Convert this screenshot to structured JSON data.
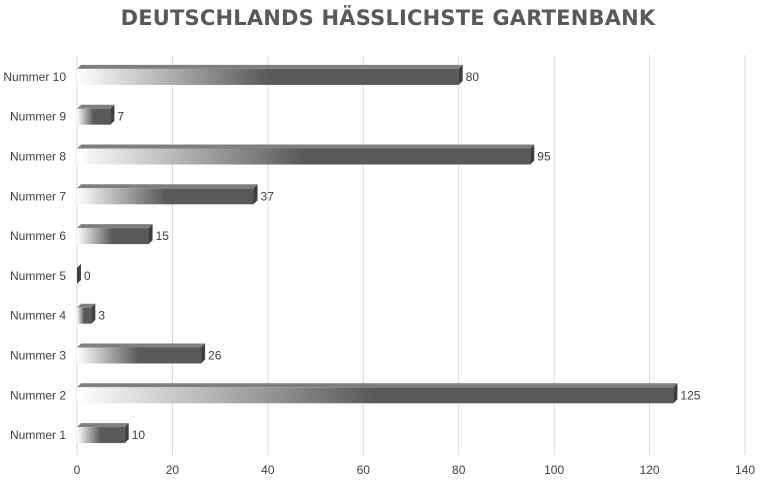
{
  "chart_data": {
    "type": "bar",
    "orientation": "horizontal",
    "title": "DEUTSCHLANDS HÄSSLICHSTE GARTENBANK",
    "categories": [
      "Nummer 1",
      "Nummer 2",
      "Nummer 3",
      "Nummer 4",
      "Nummer 5",
      "Nummer 6",
      "Nummer 7",
      "Nummer 8",
      "Nummer 9",
      "Nummer 10"
    ],
    "values": [
      10,
      125,
      26,
      3,
      0,
      15,
      37,
      95,
      7,
      80
    ],
    "xlabel": "",
    "ylabel": "",
    "xlim": [
      0,
      140
    ],
    "xticks": [
      0,
      20,
      40,
      60,
      80,
      100,
      120,
      140
    ],
    "grid": true,
    "legend": "none",
    "data_labels": true,
    "colors": {
      "bar_dark": "#595959",
      "bar_light": "#ffffff",
      "bar_side": "#3f3f3f",
      "bar_top": "#7f7f7f",
      "grid": "#d9d9d9",
      "text": "#404040",
      "title": "#595959"
    }
  }
}
